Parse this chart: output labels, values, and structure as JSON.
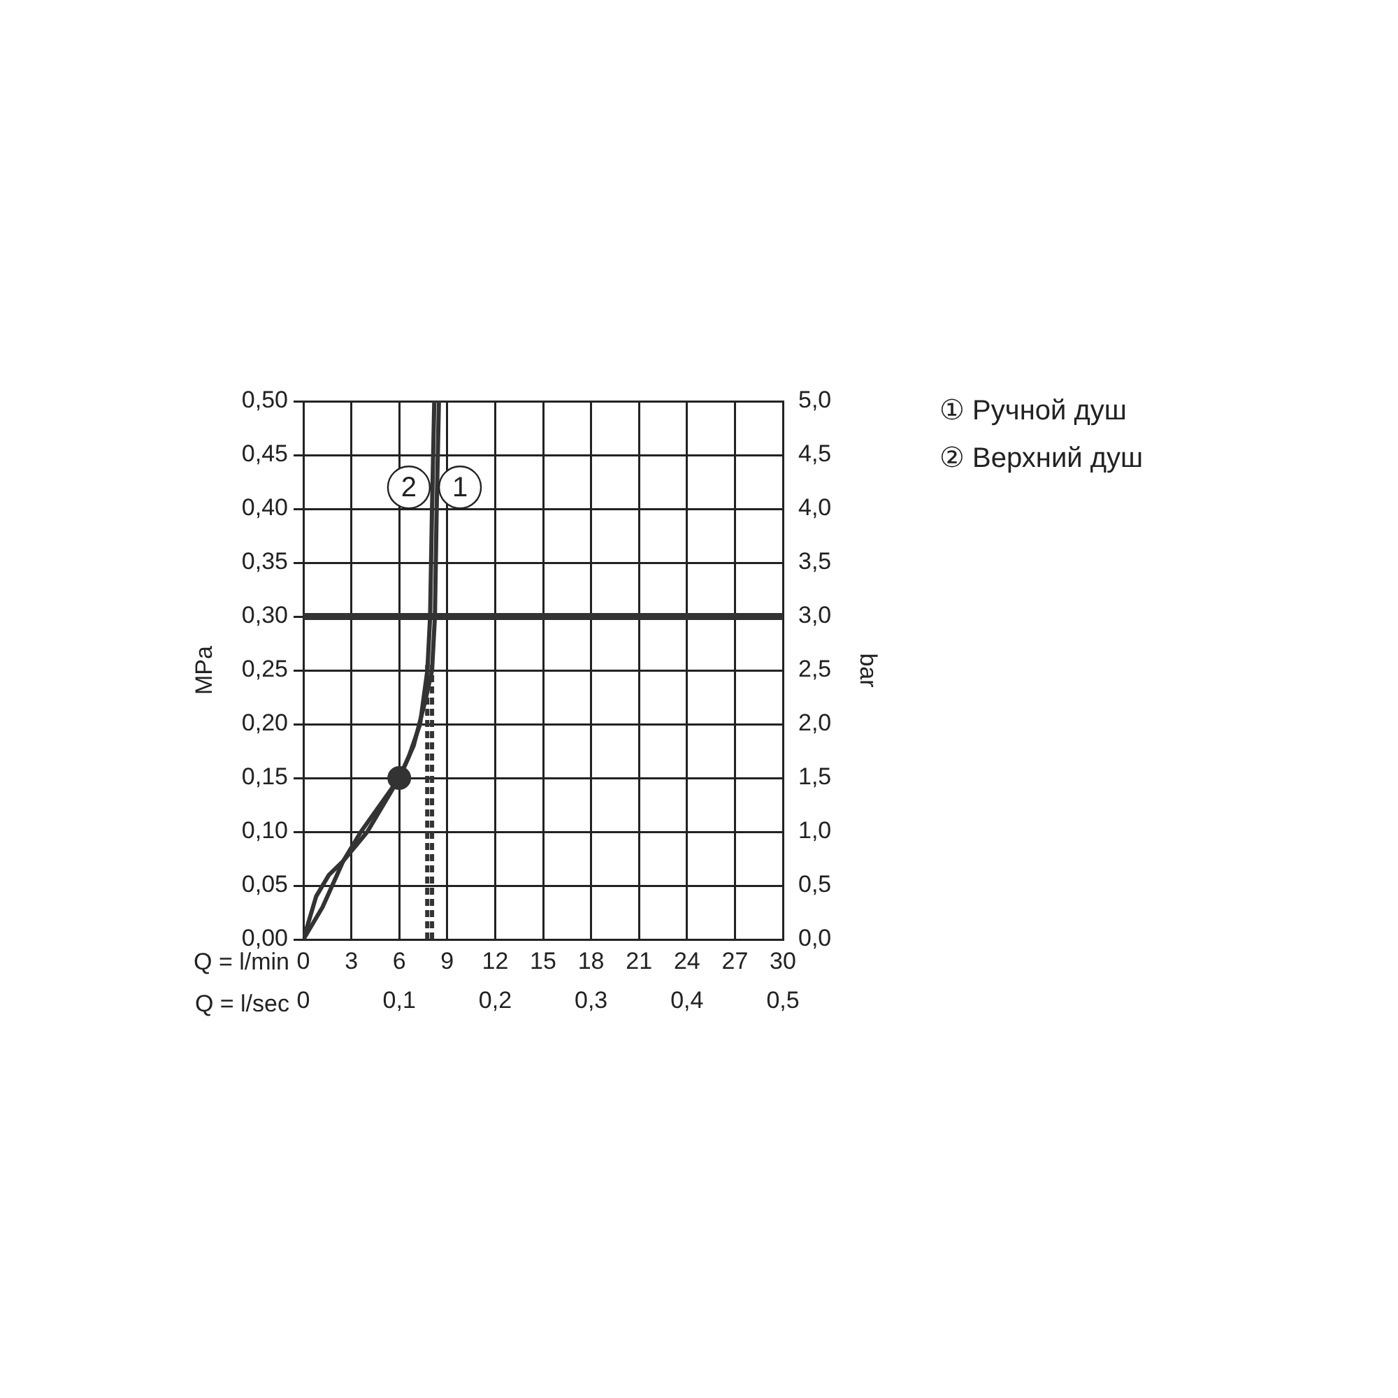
{
  "chart_data": {
    "type": "line",
    "xlabel": "Q = l/min",
    "x2label": "Q = l/sec",
    "ylabel": "MPa",
    "y2label": "bar",
    "xlim": [
      0,
      30
    ],
    "xticks": [
      0,
      3,
      6,
      9,
      12,
      15,
      18,
      21,
      24,
      27,
      30
    ],
    "x2lim": [
      0,
      0.5
    ],
    "x2ticks": [
      0,
      {
        "value": 0.1,
        "label": "0,1"
      },
      {
        "value": 0.2,
        "label": "0,2"
      },
      {
        "value": 0.3,
        "label": "0,3"
      },
      {
        "value": 0.4,
        "label": "0,4"
      },
      {
        "value": 0.5,
        "label": "0,5"
      }
    ],
    "ylim": [
      0,
      0.5
    ],
    "yticks": [
      {
        "value": 0,
        "label": "0,00"
      },
      {
        "value": 0.05,
        "label": "0,05"
      },
      {
        "value": 0.1,
        "label": "0,10"
      },
      {
        "value": 0.15,
        "label": "0,15"
      },
      {
        "value": 0.2,
        "label": "0,20"
      },
      {
        "value": 0.25,
        "label": "0,25"
      },
      {
        "value": 0.3,
        "label": "0,30"
      },
      {
        "value": 0.35,
        "label": "0,35"
      },
      {
        "value": 0.4,
        "label": "0,40"
      },
      {
        "value": 0.45,
        "label": "0,45"
      },
      {
        "value": 0.5,
        "label": "0,50"
      }
    ],
    "y2lim": [
      0,
      5
    ],
    "y2ticks": [
      {
        "value": 0,
        "label": "0,0"
      },
      {
        "value": 0.5,
        "label": "0,5"
      },
      {
        "value": 1,
        "label": "1,0"
      },
      {
        "value": 1.5,
        "label": "1,5"
      },
      {
        "value": 2,
        "label": "2,0"
      },
      {
        "value": 2.5,
        "label": "2,5"
      },
      {
        "value": 3,
        "label": "3,0"
      },
      {
        "value": 3.5,
        "label": "3,5"
      },
      {
        "value": 4,
        "label": "4,0"
      },
      {
        "value": 4.5,
        "label": "4,5"
      },
      {
        "value": 5,
        "label": "5,0"
      }
    ],
    "grid": true,
    "legend": "right",
    "ref_lines": [
      {
        "axis": "y",
        "value": 0.3,
        "color": "#333333"
      }
    ],
    "annotations": [
      {
        "text": "2",
        "x": 6.6,
        "y": 0.42
      },
      {
        "text": "1",
        "x": 9.8,
        "y": 0.42
      }
    ],
    "series": [
      {
        "name": "① Ручной душ",
        "color": "#333333",
        "x": [
          0,
          0.8,
          1.6,
          2.5,
          4,
          5,
          6,
          6.9,
          7.6,
          8.05,
          8.23,
          8.34,
          8.48
        ],
        "values": [
          0,
          0.04,
          0.06,
          0.073,
          0.1,
          0.125,
          0.15,
          0.18,
          0.22,
          0.25,
          0.3,
          0.4,
          0.5
        ]
      },
      {
        "name": "② Верхний душ",
        "color": "#333333",
        "x": [
          0,
          1.2,
          2.5,
          3.6,
          4.8,
          6,
          6.6,
          7.3,
          7.76,
          7.93,
          8.05,
          8.19
        ],
        "values": [
          0,
          0.03,
          0.073,
          0.1,
          0.125,
          0.15,
          0.17,
          0.2,
          0.25,
          0.3,
          0.4,
          0.5
        ]
      },
      {
        "line_style": "dashed",
        "color": "#333333",
        "x": [
          7.75,
          7.75
        ],
        "values": [
          0,
          0.255
        ]
      },
      {
        "line_style": "dashed",
        "color": "#333333",
        "x": [
          8.05,
          8.05
        ],
        "values": [
          0,
          0.255
        ]
      },
      {
        "type": "scatter",
        "marker": "circle",
        "color": "#333333",
        "x": [
          6
        ],
        "values": [
          0.15
        ]
      }
    ]
  }
}
